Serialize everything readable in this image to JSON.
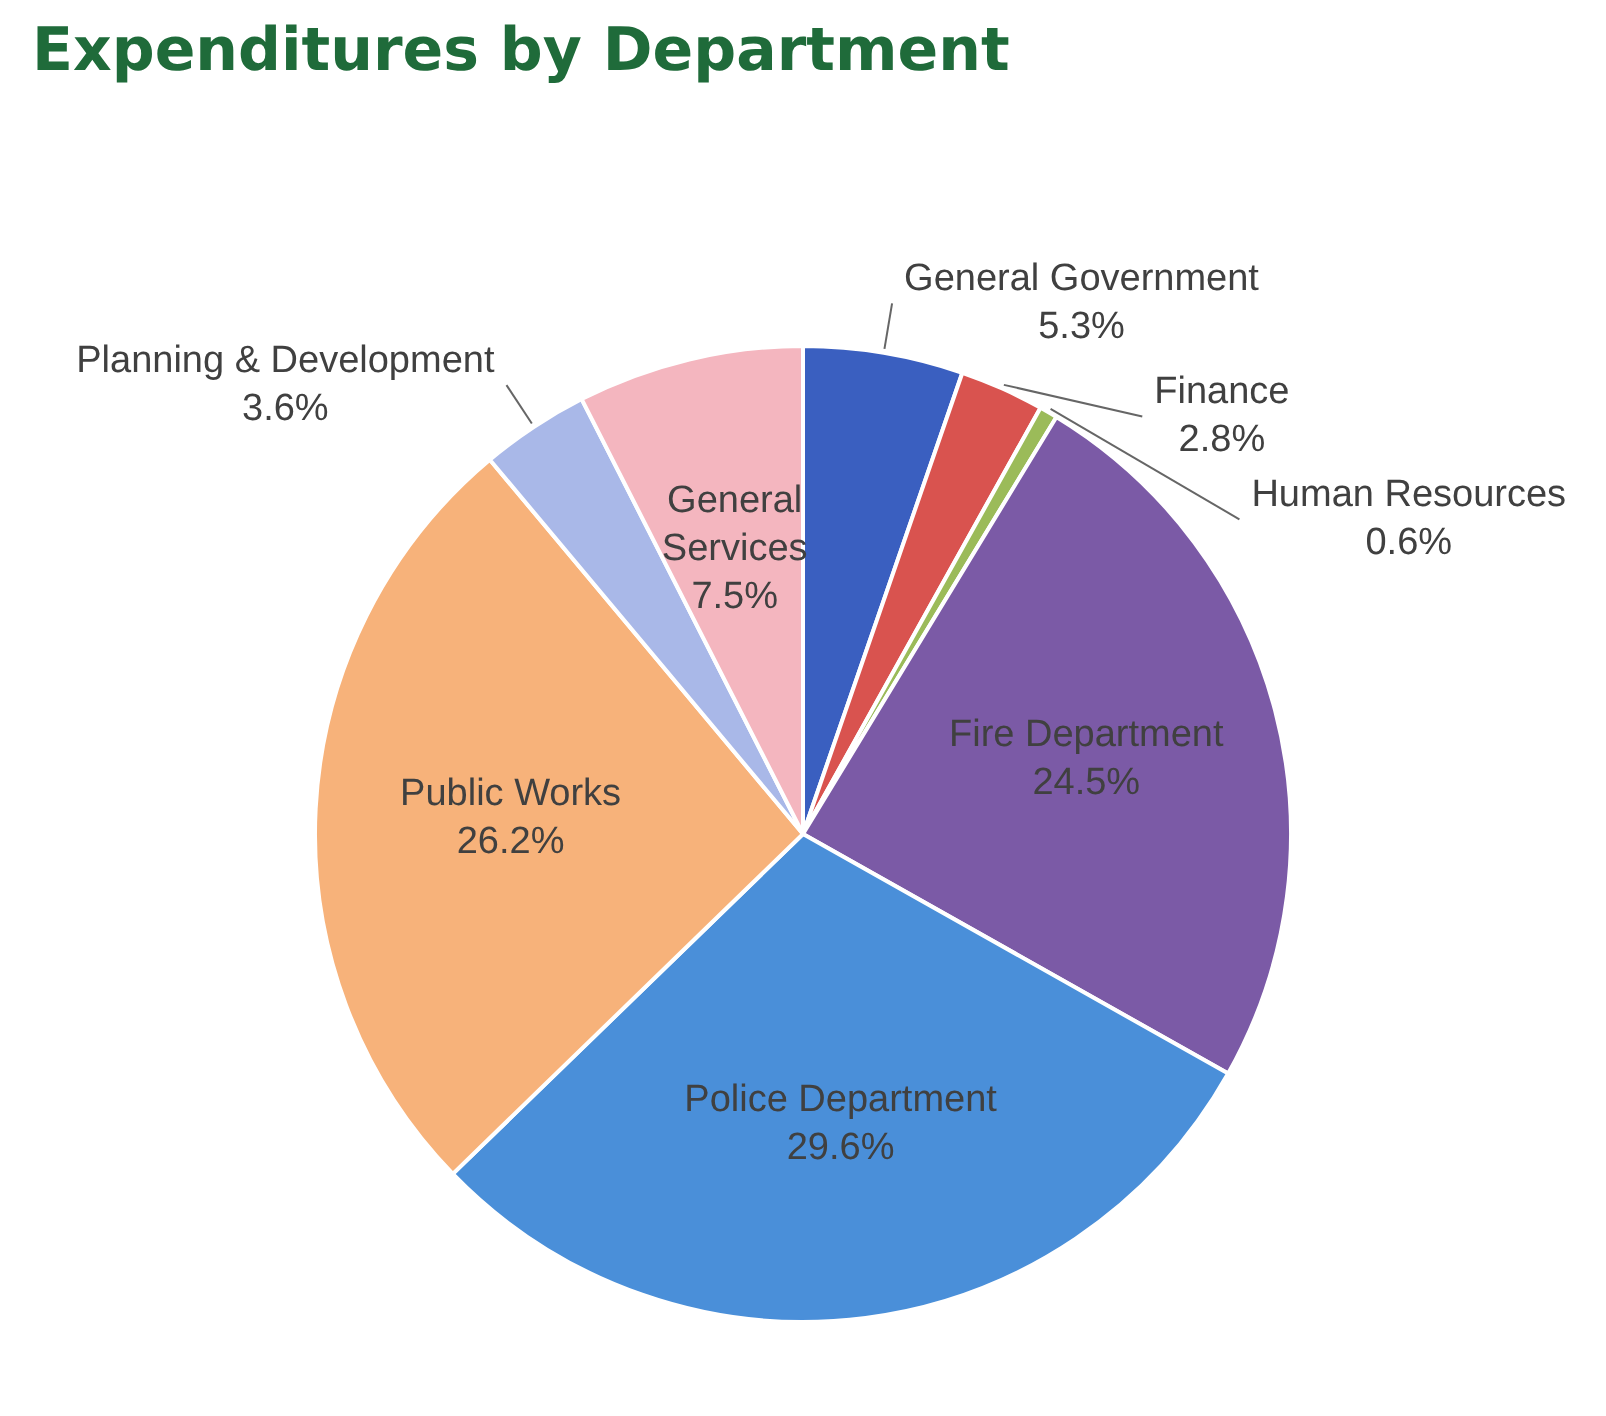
{
  "chart_data": {
    "type": "pie",
    "title": "Expenditures by Department",
    "categories": [
      "General Government",
      "Finance",
      "Human Resources",
      "Fire Department",
      "Police Department",
      "Public Works",
      "Planning & Development",
      "General Services"
    ],
    "values": [
      5.3,
      2.8,
      0.6,
      24.5,
      29.6,
      26.2,
      3.6,
      7.5
    ],
    "value_labels": [
      "5.3%",
      "2.8%",
      "0.6%",
      "24.5%",
      "29.6%",
      "26.2%",
      "3.6%",
      "7.5%"
    ],
    "colors": [
      "#3a5fc0",
      "#d9534f",
      "#9bbb59",
      "#7b5aa6",
      "#4a8fd9",
      "#f7b27a",
      "#a9b8e8",
      "#f4b6bf"
    ],
    "legend": false
  }
}
